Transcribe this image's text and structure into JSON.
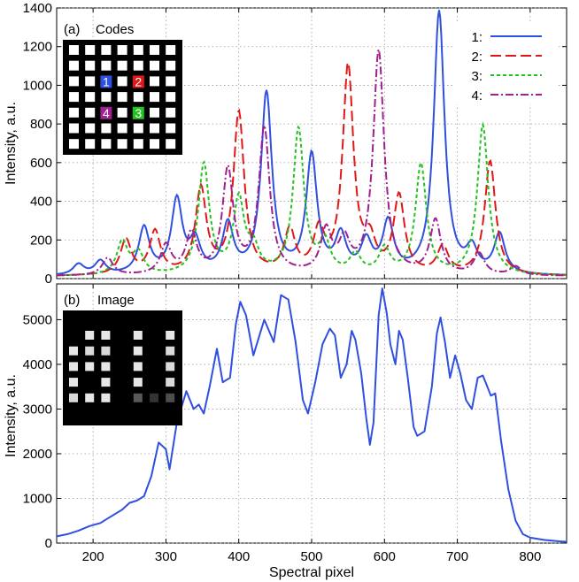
{
  "xlabel": "Spectral pixel",
  "colors": {
    "s1": "#2f4fe0",
    "s2": "#e01818",
    "s3": "#22c31e",
    "s4": "#a0208f",
    "b": "#2f4fe0"
  },
  "chart_data": [
    {
      "type": "line",
      "panel_label": "(a)",
      "inset_title": "Codes",
      "inset_markers": [
        "1",
        "2",
        "3",
        "4"
      ],
      "ylabel": "Intensity, a.u.",
      "xlim": [
        150,
        850
      ],
      "ylim": [
        0,
        1400
      ],
      "xticks": [
        200,
        300,
        400,
        500,
        600,
        700,
        800
      ],
      "yticks": [
        0,
        200,
        400,
        600,
        800,
        1000,
        1200,
        1400
      ],
      "grid": true,
      "legend_position": "top-right",
      "series": [
        {
          "name": "1:",
          "peaks": [
            [
              180,
              55
            ],
            [
              210,
              70
            ],
            [
              270,
              240
            ],
            [
              315,
              380
            ],
            [
              340,
              160
            ],
            [
              385,
              250
            ],
            [
              438,
              935
            ],
            [
              500,
              610
            ],
            [
              540,
              190
            ],
            [
              575,
              160
            ],
            [
              605,
              260
            ],
            [
              675,
              1360
            ],
            [
              720,
              120
            ],
            [
              758,
              205
            ]
          ]
        },
        {
          "name": "2:",
          "peaks": [
            [
              245,
              180
            ],
            [
              285,
              220
            ],
            [
              348,
              440
            ],
            [
              400,
              835
            ],
            [
              470,
              220
            ],
            [
              510,
              210
            ],
            [
              550,
              1070
            ],
            [
              580,
              150
            ],
            [
              620,
              400
            ],
            [
              680,
              140
            ],
            [
              745,
              590
            ]
          ]
        },
        {
          "name": "3:",
          "peaks": [
            [
              240,
              170
            ],
            [
              262,
              110
            ],
            [
              352,
              570
            ],
            [
              400,
              380
            ],
            [
              420,
              120
            ],
            [
              482,
              750
            ],
            [
              518,
              160
            ],
            [
              560,
              100
            ],
            [
              600,
              130
            ],
            [
              650,
              570
            ],
            [
              735,
              775
            ]
          ]
        },
        {
          "name": "4:",
          "peaks": [
            [
              220,
              90
            ],
            [
              300,
              150
            ],
            [
              335,
              210
            ],
            [
              385,
              540
            ],
            [
              435,
              755
            ],
            [
              520,
              220
            ],
            [
              545,
              160
            ],
            [
              592,
              1160
            ],
            [
              670,
              280
            ],
            [
              730,
              110
            ],
            [
              780,
              45
            ]
          ]
        }
      ]
    },
    {
      "type": "line",
      "panel_label": "(b)",
      "inset_title": "Image",
      "ylabel": "Intensity, a.u.",
      "xlim": [
        150,
        850
      ],
      "ylim": [
        0,
        5800
      ],
      "xticks": [
        200,
        300,
        400,
        500,
        600,
        700,
        800
      ],
      "yticks": [
        0,
        1000,
        2000,
        3000,
        4000,
        5000
      ],
      "grid": true,
      "series": [
        {
          "points": [
            [
              150,
              150
            ],
            [
              165,
              200
            ],
            [
              180,
              280
            ],
            [
              195,
              380
            ],
            [
              210,
              450
            ],
            [
              220,
              550
            ],
            [
              230,
              650
            ],
            [
              240,
              750
            ],
            [
              250,
              900
            ],
            [
              260,
              950
            ],
            [
              270,
              1050
            ],
            [
              280,
              1500
            ],
            [
              290,
              2250
            ],
            [
              300,
              2100
            ],
            [
              305,
              1650
            ],
            [
              315,
              2700
            ],
            [
              328,
              3400
            ],
            [
              338,
              3000
            ],
            [
              345,
              3100
            ],
            [
              352,
              2900
            ],
            [
              360,
              3500
            ],
            [
              370,
              4350
            ],
            [
              378,
              3600
            ],
            [
              388,
              3700
            ],
            [
              396,
              4900
            ],
            [
              402,
              5400
            ],
            [
              410,
              5100
            ],
            [
              420,
              4200
            ],
            [
              435,
              5000
            ],
            [
              448,
              4500
            ],
            [
              458,
              5550
            ],
            [
              468,
              5450
            ],
            [
              478,
              4500
            ],
            [
              488,
              3200
            ],
            [
              495,
              2900
            ],
            [
              505,
              3600
            ],
            [
              515,
              4450
            ],
            [
              525,
              4800
            ],
            [
              532,
              4650
            ],
            [
              540,
              3700
            ],
            [
              548,
              4000
            ],
            [
              555,
              4750
            ],
            [
              560,
              4550
            ],
            [
              568,
              3800
            ],
            [
              575,
              2800
            ],
            [
              580,
              2200
            ],
            [
              585,
              2700
            ],
            [
              592,
              5100
            ],
            [
              597,
              5700
            ],
            [
              603,
              5150
            ],
            [
              608,
              4450
            ],
            [
              615,
              4000
            ],
            [
              620,
              4750
            ],
            [
              625,
              4550
            ],
            [
              632,
              3700
            ],
            [
              640,
              2600
            ],
            [
              645,
              2400
            ],
            [
              655,
              2500
            ],
            [
              665,
              3500
            ],
            [
              672,
              4700
            ],
            [
              677,
              5050
            ],
            [
              683,
              4500
            ],
            [
              690,
              3700
            ],
            [
              697,
              4200
            ],
            [
              704,
              3800
            ],
            [
              712,
              3200
            ],
            [
              720,
              3000
            ],
            [
              728,
              3700
            ],
            [
              735,
              3750
            ],
            [
              740,
              3550
            ],
            [
              746,
              3300
            ],
            [
              752,
              3350
            ],
            [
              760,
              2300
            ],
            [
              770,
              1200
            ],
            [
              780,
              500
            ],
            [
              790,
              200
            ],
            [
              800,
              120
            ],
            [
              820,
              70
            ],
            [
              840,
              40
            ],
            [
              850,
              30
            ]
          ]
        }
      ]
    }
  ]
}
